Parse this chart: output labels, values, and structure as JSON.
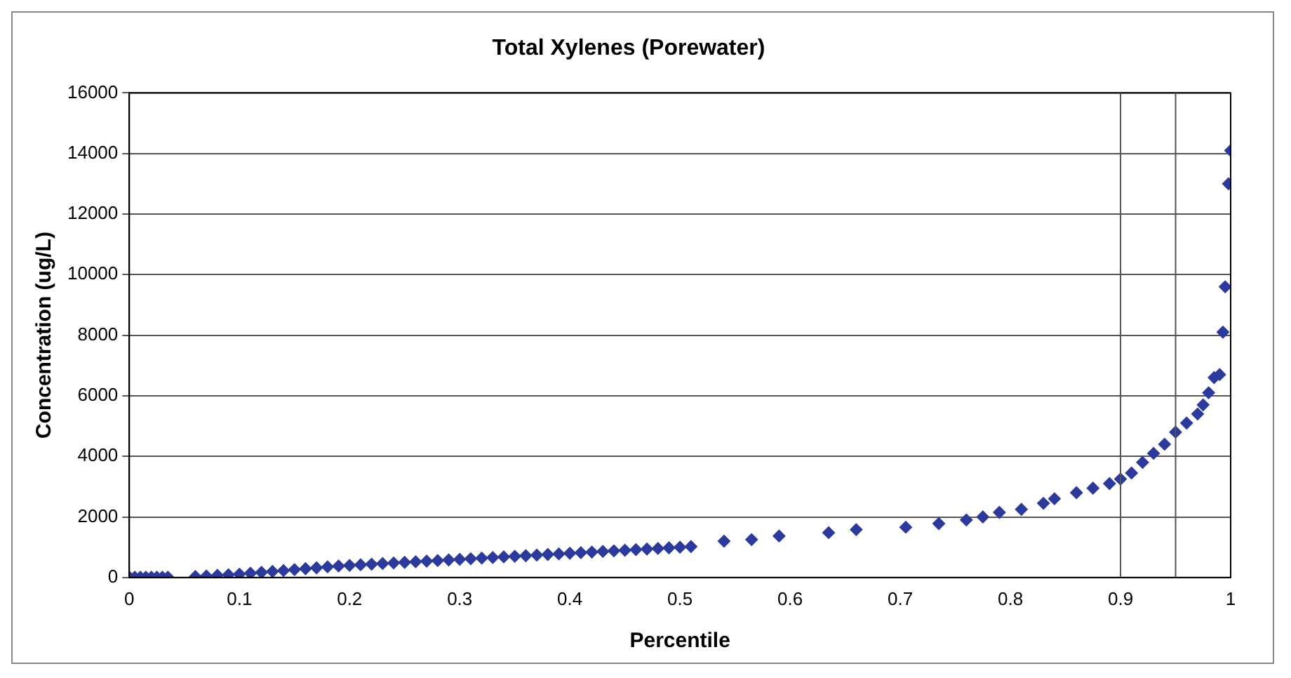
{
  "chart_data": {
    "type": "scatter",
    "title": "Total Xylenes (Porewater)",
    "xlabel": "Percentile",
    "ylabel": "Concentration (ug/L)",
    "x": [
      0,
      0.005,
      0.01,
      0.015,
      0.02,
      0.025,
      0.03,
      0.035,
      0.06,
      0.07,
      0.08,
      0.09,
      0.1,
      0.11,
      0.12,
      0.13,
      0.14,
      0.15,
      0.16,
      0.17,
      0.18,
      0.19,
      0.2,
      0.21,
      0.22,
      0.23,
      0.24,
      0.25,
      0.26,
      0.27,
      0.28,
      0.29,
      0.3,
      0.31,
      0.32,
      0.33,
      0.34,
      0.35,
      0.36,
      0.37,
      0.38,
      0.39,
      0.4,
      0.41,
      0.42,
      0.43,
      0.44,
      0.45,
      0.46,
      0.47,
      0.48,
      0.49,
      0.5,
      0.51,
      0.54,
      0.565,
      0.59,
      0.635,
      0.66,
      0.705,
      0.735,
      0.76,
      0.775,
      0.79,
      0.81,
      0.83,
      0.84,
      0.86,
      0.875,
      0.89,
      0.9,
      0.91,
      0.92,
      0.93,
      0.94,
      0.95,
      0.96,
      0.97,
      0.975,
      0.98,
      0.985,
      0.99,
      0.993,
      0.995,
      0.998,
      1
    ],
    "series": [
      {
        "color": "#2b3a9c",
        "values": [
          10,
          10,
          10,
          10,
          10,
          10,
          10,
          10,
          30,
          50,
          70,
          90,
          110,
          140,
          170,
          200,
          230,
          260,
          290,
          320,
          350,
          380,
          400,
          420,
          440,
          460,
          480,
          500,
          520,
          540,
          560,
          580,
          600,
          620,
          640,
          660,
          680,
          700,
          720,
          740,
          760,
          780,
          800,
          820,
          840,
          860,
          880,
          900,
          920,
          940,
          960,
          980,
          1000,
          1020,
          1200,
          1250,
          1370,
          1480,
          1580,
          1660,
          1780,
          1900,
          2000,
          2150,
          2250,
          2450,
          2600,
          2800,
          2950,
          3100,
          3250,
          3450,
          3800,
          4100,
          4400,
          4800,
          5100,
          5400,
          5700,
          6100,
          6600,
          6700,
          8100,
          9600,
          13000,
          14100
        ]
      }
    ],
    "xlim": [
      0,
      1
    ],
    "xticks": [
      0,
      0.1,
      0.2,
      0.3,
      0.4,
      0.5,
      0.6,
      0.7,
      0.8,
      0.9,
      1
    ],
    "ylim": [
      0,
      16000
    ],
    "yticks": [
      0,
      2000,
      4000,
      6000,
      8000,
      10000,
      12000,
      14000,
      16000
    ],
    "ref_lines": [
      {
        "axis": "x",
        "value": 0.9,
        "color": "#555555"
      },
      {
        "axis": "x",
        "value": 0.95,
        "color": "#555555"
      }
    ],
    "grid": "y",
    "legend": false,
    "marker": "diamond"
  }
}
